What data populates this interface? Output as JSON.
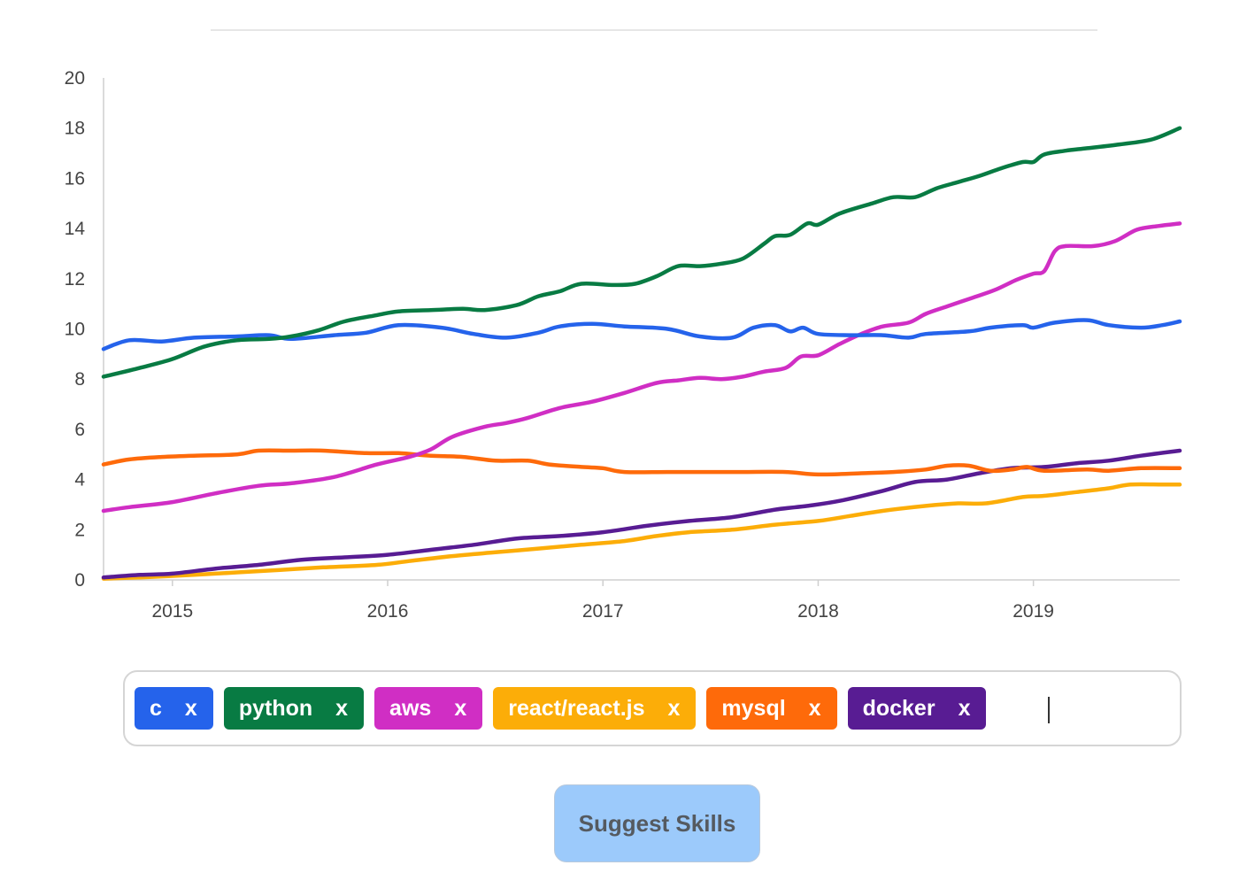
{
  "chart_data": {
    "type": "line",
    "title": "",
    "xlabel": "",
    "ylabel": "",
    "xlim": [
      2014.68,
      2019.68
    ],
    "ylim": [
      0,
      20
    ],
    "yticks": [
      0,
      2,
      4,
      6,
      8,
      10,
      12,
      14,
      16,
      18,
      20
    ],
    "xticks": [
      "2015",
      "2016",
      "2017",
      "2018",
      "2019"
    ],
    "xtick_values": [
      2015,
      2016,
      2017,
      2018,
      2019
    ],
    "grid": false,
    "legend": "none",
    "series": [
      {
        "name": "c",
        "color": "#2563eb",
        "points": [
          [
            2014.68,
            9.2
          ],
          [
            2014.8,
            9.55
          ],
          [
            2014.95,
            9.5
          ],
          [
            2015.1,
            9.65
          ],
          [
            2015.3,
            9.7
          ],
          [
            2015.45,
            9.75
          ],
          [
            2015.55,
            9.6
          ],
          [
            2015.75,
            9.75
          ],
          [
            2015.9,
            9.85
          ],
          [
            2016.05,
            10.15
          ],
          [
            2016.25,
            10.05
          ],
          [
            2016.4,
            9.8
          ],
          [
            2016.55,
            9.65
          ],
          [
            2016.7,
            9.85
          ],
          [
            2016.8,
            10.1
          ],
          [
            2016.95,
            10.2
          ],
          [
            2017.1,
            10.1
          ],
          [
            2017.3,
            10.0
          ],
          [
            2017.45,
            9.7
          ],
          [
            2017.6,
            9.65
          ],
          [
            2017.7,
            10.05
          ],
          [
            2017.8,
            10.15
          ],
          [
            2017.87,
            9.9
          ],
          [
            2017.93,
            10.05
          ],
          [
            2018.0,
            9.8
          ],
          [
            2018.15,
            9.75
          ],
          [
            2018.3,
            9.75
          ],
          [
            2018.42,
            9.65
          ],
          [
            2018.5,
            9.8
          ],
          [
            2018.7,
            9.9
          ],
          [
            2018.8,
            10.05
          ],
          [
            2018.95,
            10.15
          ],
          [
            2019.0,
            10.05
          ],
          [
            2019.1,
            10.25
          ],
          [
            2019.25,
            10.35
          ],
          [
            2019.35,
            10.15
          ],
          [
            2019.5,
            10.05
          ],
          [
            2019.6,
            10.15
          ],
          [
            2019.68,
            10.3
          ]
        ]
      },
      {
        "name": "python",
        "color": "#087b43",
        "points": [
          [
            2014.68,
            8.1
          ],
          [
            2014.85,
            8.45
          ],
          [
            2015.0,
            8.8
          ],
          [
            2015.15,
            9.3
          ],
          [
            2015.3,
            9.55
          ],
          [
            2015.45,
            9.6
          ],
          [
            2015.55,
            9.7
          ],
          [
            2015.68,
            9.95
          ],
          [
            2015.8,
            10.3
          ],
          [
            2015.95,
            10.55
          ],
          [
            2016.05,
            10.7
          ],
          [
            2016.2,
            10.75
          ],
          [
            2016.35,
            10.8
          ],
          [
            2016.45,
            10.75
          ],
          [
            2016.6,
            10.95
          ],
          [
            2016.7,
            11.3
          ],
          [
            2016.8,
            11.5
          ],
          [
            2016.9,
            11.8
          ],
          [
            2017.05,
            11.75
          ],
          [
            2017.15,
            11.8
          ],
          [
            2017.25,
            12.1
          ],
          [
            2017.35,
            12.5
          ],
          [
            2017.45,
            12.5
          ],
          [
            2017.55,
            12.6
          ],
          [
            2017.65,
            12.8
          ],
          [
            2017.75,
            13.4
          ],
          [
            2017.8,
            13.7
          ],
          [
            2017.87,
            13.75
          ],
          [
            2017.95,
            14.2
          ],
          [
            2018.0,
            14.15
          ],
          [
            2018.1,
            14.6
          ],
          [
            2018.25,
            15.0
          ],
          [
            2018.35,
            15.25
          ],
          [
            2018.45,
            15.25
          ],
          [
            2018.55,
            15.6
          ],
          [
            2018.65,
            15.85
          ],
          [
            2018.75,
            16.1
          ],
          [
            2018.85,
            16.4
          ],
          [
            2018.95,
            16.65
          ],
          [
            2019.0,
            16.65
          ],
          [
            2019.05,
            16.95
          ],
          [
            2019.15,
            17.1
          ],
          [
            2019.25,
            17.2
          ],
          [
            2019.4,
            17.35
          ],
          [
            2019.55,
            17.55
          ],
          [
            2019.68,
            18.0
          ]
        ]
      },
      {
        "name": "aws",
        "color": "#d02ec4",
        "points": [
          [
            2014.68,
            2.75
          ],
          [
            2014.8,
            2.9
          ],
          [
            2015.0,
            3.1
          ],
          [
            2015.2,
            3.45
          ],
          [
            2015.4,
            3.75
          ],
          [
            2015.55,
            3.85
          ],
          [
            2015.75,
            4.1
          ],
          [
            2015.95,
            4.6
          ],
          [
            2016.1,
            4.9
          ],
          [
            2016.2,
            5.2
          ],
          [
            2016.3,
            5.7
          ],
          [
            2016.45,
            6.1
          ],
          [
            2016.55,
            6.25
          ],
          [
            2016.65,
            6.45
          ],
          [
            2016.8,
            6.85
          ],
          [
            2016.95,
            7.1
          ],
          [
            2017.1,
            7.45
          ],
          [
            2017.25,
            7.85
          ],
          [
            2017.35,
            7.95
          ],
          [
            2017.45,
            8.05
          ],
          [
            2017.55,
            8.0
          ],
          [
            2017.65,
            8.1
          ],
          [
            2017.75,
            8.3
          ],
          [
            2017.85,
            8.45
          ],
          [
            2017.92,
            8.9
          ],
          [
            2018.0,
            8.95
          ],
          [
            2018.1,
            9.4
          ],
          [
            2018.2,
            9.8
          ],
          [
            2018.3,
            10.1
          ],
          [
            2018.42,
            10.25
          ],
          [
            2018.5,
            10.6
          ],
          [
            2018.6,
            10.9
          ],
          [
            2018.72,
            11.25
          ],
          [
            2018.82,
            11.55
          ],
          [
            2018.92,
            11.95
          ],
          [
            2019.0,
            12.2
          ],
          [
            2019.05,
            12.3
          ],
          [
            2019.1,
            13.1
          ],
          [
            2019.15,
            13.3
          ],
          [
            2019.28,
            13.3
          ],
          [
            2019.38,
            13.5
          ],
          [
            2019.48,
            13.95
          ],
          [
            2019.58,
            14.1
          ],
          [
            2019.68,
            14.2
          ]
        ]
      },
      {
        "name": "react/react.js",
        "color": "#fcad08",
        "points": [
          [
            2014.68,
            0.05
          ],
          [
            2014.85,
            0.1
          ],
          [
            2015.1,
            0.2
          ],
          [
            2015.3,
            0.3
          ],
          [
            2015.5,
            0.4
          ],
          [
            2015.7,
            0.5
          ],
          [
            2015.95,
            0.6
          ],
          [
            2016.1,
            0.75
          ],
          [
            2016.3,
            0.95
          ],
          [
            2016.5,
            1.1
          ],
          [
            2016.7,
            1.25
          ],
          [
            2016.9,
            1.4
          ],
          [
            2017.1,
            1.55
          ],
          [
            2017.25,
            1.75
          ],
          [
            2017.4,
            1.9
          ],
          [
            2017.6,
            2.0
          ],
          [
            2017.8,
            2.2
          ],
          [
            2018.0,
            2.35
          ],
          [
            2018.15,
            2.55
          ],
          [
            2018.3,
            2.75
          ],
          [
            2018.5,
            2.95
          ],
          [
            2018.65,
            3.05
          ],
          [
            2018.78,
            3.05
          ],
          [
            2018.95,
            3.3
          ],
          [
            2019.05,
            3.35
          ],
          [
            2019.2,
            3.5
          ],
          [
            2019.35,
            3.65
          ],
          [
            2019.45,
            3.8
          ],
          [
            2019.6,
            3.8
          ],
          [
            2019.68,
            3.8
          ]
        ]
      },
      {
        "name": "mysql",
        "color": "#fe6a0a",
        "points": [
          [
            2014.68,
            4.6
          ],
          [
            2014.8,
            4.8
          ],
          [
            2014.95,
            4.9
          ],
          [
            2015.1,
            4.95
          ],
          [
            2015.3,
            5.0
          ],
          [
            2015.4,
            5.15
          ],
          [
            2015.55,
            5.15
          ],
          [
            2015.7,
            5.15
          ],
          [
            2015.9,
            5.05
          ],
          [
            2016.05,
            5.05
          ],
          [
            2016.2,
            4.95
          ],
          [
            2016.35,
            4.9
          ],
          [
            2016.5,
            4.75
          ],
          [
            2016.65,
            4.75
          ],
          [
            2016.75,
            4.6
          ],
          [
            2016.9,
            4.5
          ],
          [
            2017.0,
            4.45
          ],
          [
            2017.1,
            4.3
          ],
          [
            2017.3,
            4.3
          ],
          [
            2017.5,
            4.3
          ],
          [
            2017.65,
            4.3
          ],
          [
            2017.85,
            4.3
          ],
          [
            2018.0,
            4.2
          ],
          [
            2018.2,
            4.25
          ],
          [
            2018.35,
            4.3
          ],
          [
            2018.5,
            4.4
          ],
          [
            2018.6,
            4.55
          ],
          [
            2018.7,
            4.55
          ],
          [
            2018.8,
            4.35
          ],
          [
            2018.9,
            4.4
          ],
          [
            2018.97,
            4.5
          ],
          [
            2019.05,
            4.35
          ],
          [
            2019.25,
            4.4
          ],
          [
            2019.35,
            4.35
          ],
          [
            2019.5,
            4.45
          ],
          [
            2019.68,
            4.45
          ]
        ]
      },
      {
        "name": "docker",
        "color": "#581c93",
        "points": [
          [
            2014.68,
            0.1
          ],
          [
            2014.85,
            0.2
          ],
          [
            2015.0,
            0.25
          ],
          [
            2015.2,
            0.45
          ],
          [
            2015.4,
            0.6
          ],
          [
            2015.6,
            0.8
          ],
          [
            2015.8,
            0.9
          ],
          [
            2016.0,
            1.0
          ],
          [
            2016.2,
            1.2
          ],
          [
            2016.4,
            1.4
          ],
          [
            2016.6,
            1.65
          ],
          [
            2016.8,
            1.75
          ],
          [
            2017.0,
            1.9
          ],
          [
            2017.2,
            2.15
          ],
          [
            2017.4,
            2.35
          ],
          [
            2017.6,
            2.5
          ],
          [
            2017.8,
            2.8
          ],
          [
            2017.95,
            2.95
          ],
          [
            2018.1,
            3.15
          ],
          [
            2018.3,
            3.55
          ],
          [
            2018.45,
            3.9
          ],
          [
            2018.6,
            4.0
          ],
          [
            2018.75,
            4.25
          ],
          [
            2018.9,
            4.45
          ],
          [
            2019.05,
            4.5
          ],
          [
            2019.2,
            4.65
          ],
          [
            2019.35,
            4.75
          ],
          [
            2019.5,
            4.95
          ],
          [
            2019.68,
            5.15
          ]
        ]
      }
    ]
  },
  "skills": [
    {
      "label": "c",
      "remove": "x",
      "color": "#2563eb"
    },
    {
      "label": "python",
      "remove": "x",
      "color": "#087b43"
    },
    {
      "label": "aws",
      "remove": "x",
      "color": "#d02ec4"
    },
    {
      "label": "react/react.js",
      "remove": "x",
      "color": "#fcad08"
    },
    {
      "label": "mysql",
      "remove": "x",
      "color": "#fe6a0a"
    },
    {
      "label": "docker",
      "remove": "x",
      "color": "#581c93"
    }
  ],
  "suggest_button": {
    "label": "Suggest Skills"
  }
}
